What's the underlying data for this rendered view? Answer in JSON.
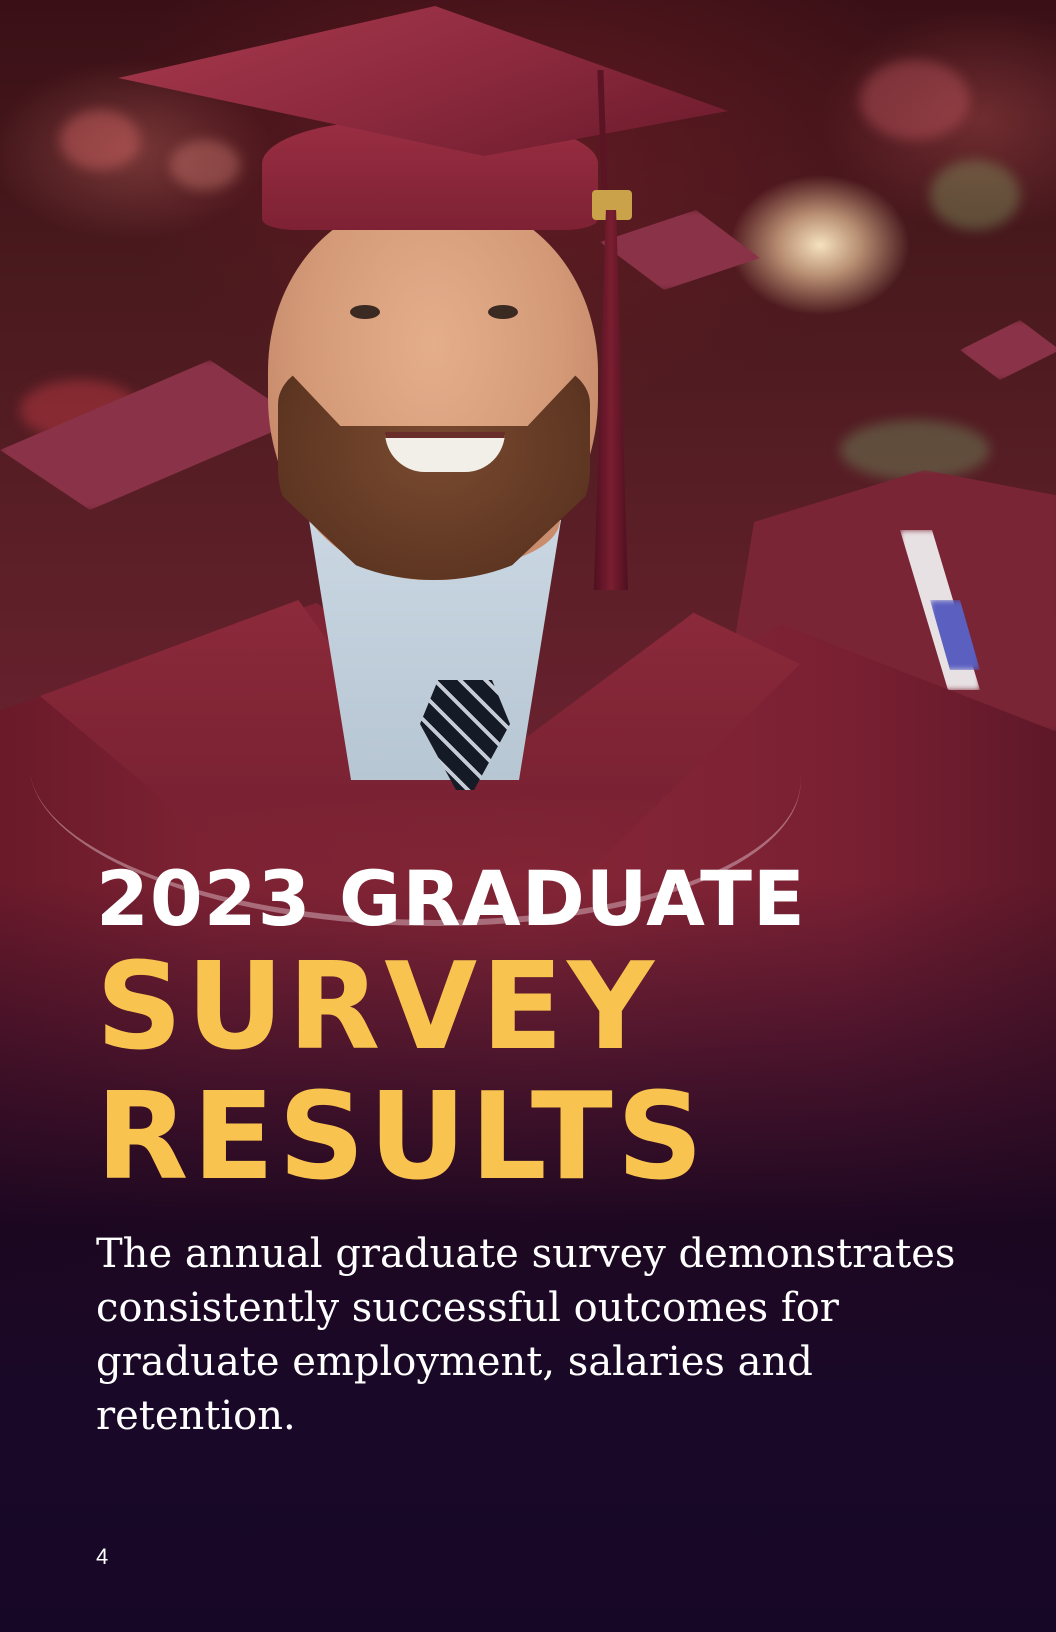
{
  "headline": {
    "line1": "2023 GRADUATE",
    "line2": "SURVEY",
    "line3": "RESULTS"
  },
  "intro": "The annual graduate survey demonstrates consistently successful outcomes for graduate employment, salaries and retention.",
  "page_number": "4",
  "colors": {
    "headline_white": "#ffffff",
    "headline_gold": "#f9c34f",
    "gown_maroon": "#862636",
    "background_purple": "#1b0a2a"
  }
}
